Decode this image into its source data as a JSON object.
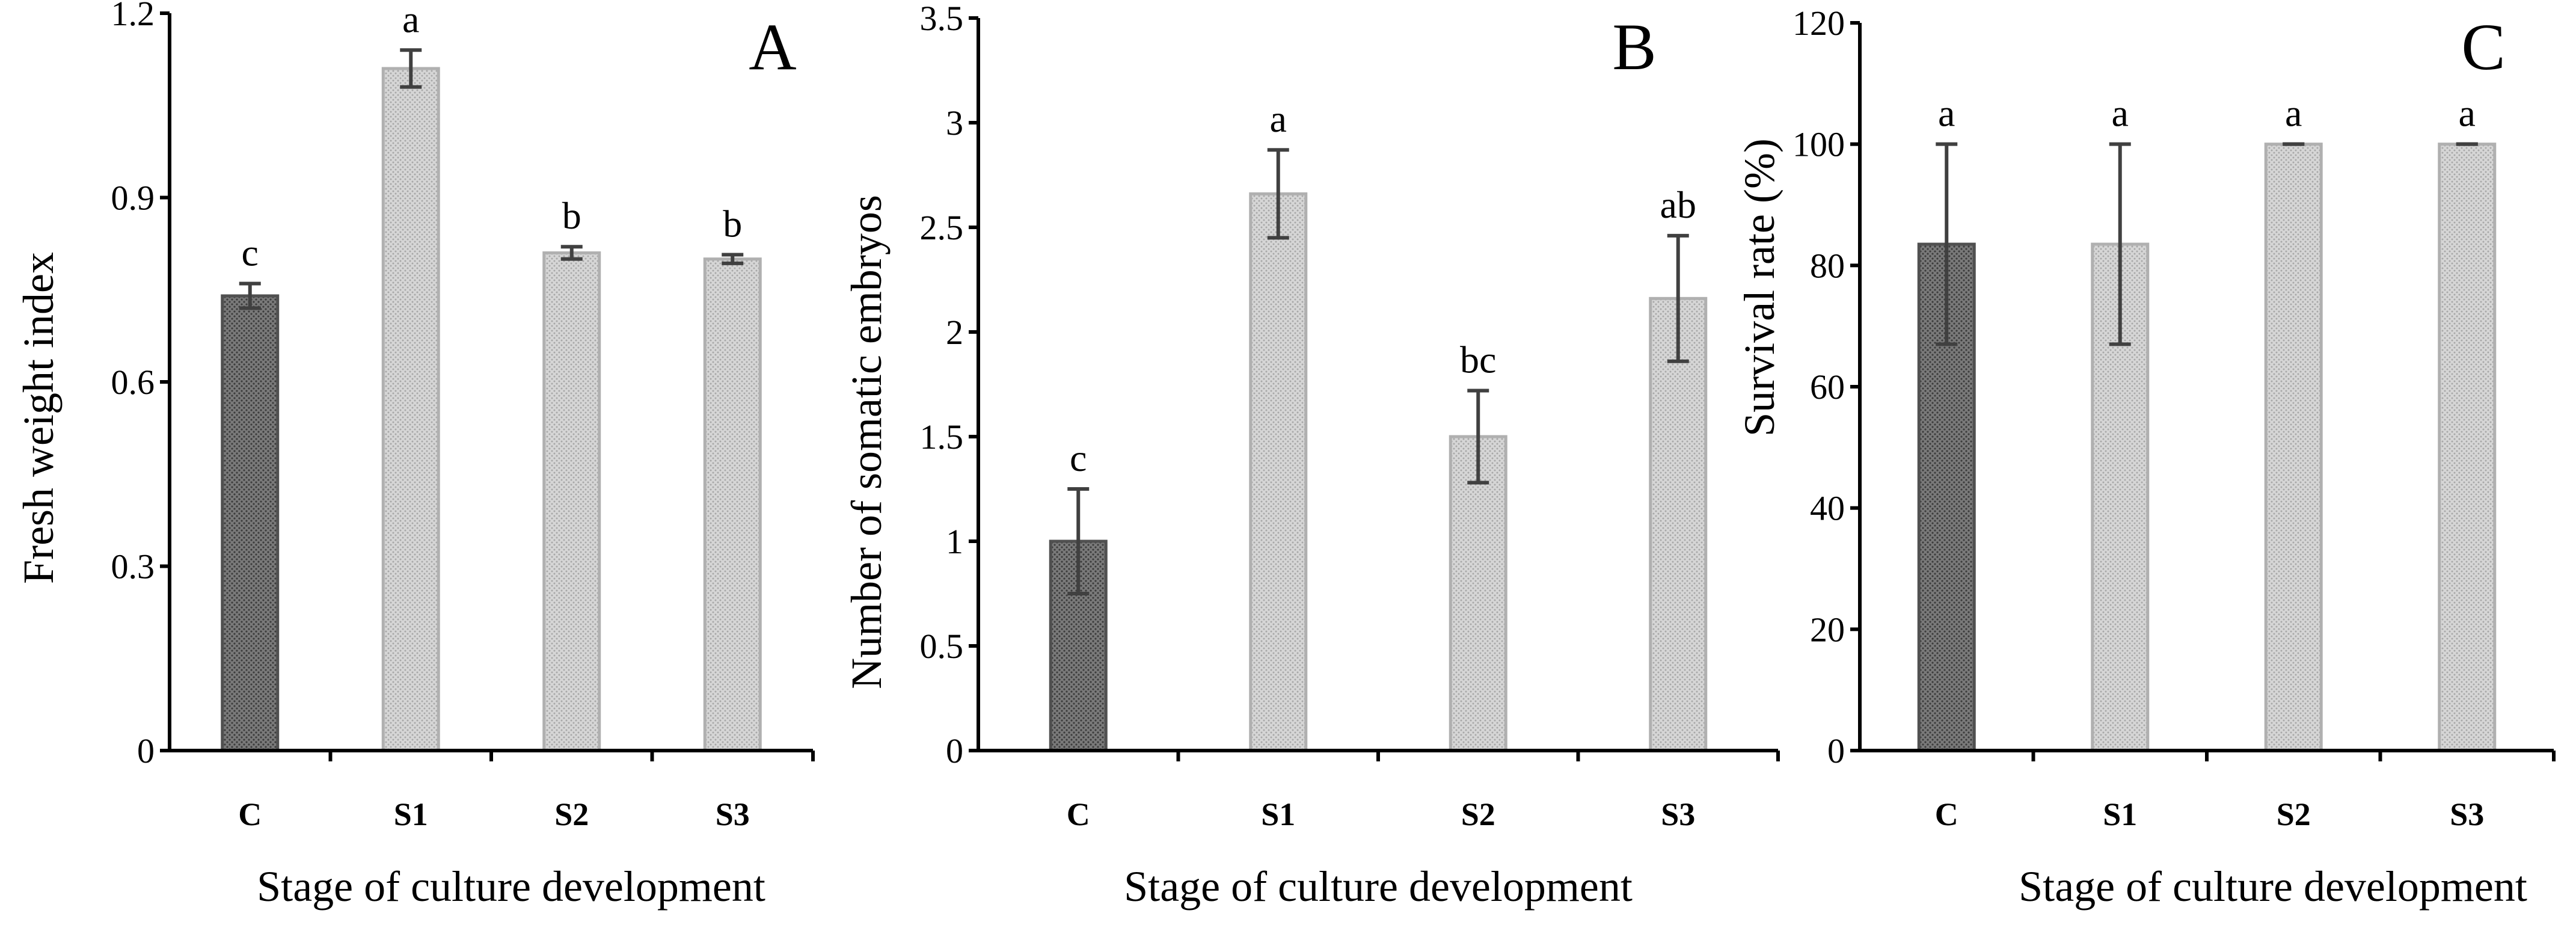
{
  "chart_data": [
    {
      "type": "bar",
      "panel": "A",
      "categories": [
        "C",
        "S1",
        "S2",
        "S3"
      ],
      "values": [
        0.74,
        1.11,
        0.81,
        0.8
      ],
      "errors": [
        0.02,
        0.03,
        0.01,
        0.007
      ],
      "significance": [
        "c",
        "a",
        "b",
        "b"
      ],
      "bar_styles": [
        "dark",
        "light",
        "light",
        "light"
      ],
      "ylabel": "Fresh weight index",
      "xlabel": "Stage of culture development",
      "ylim": [
        0,
        1.2
      ],
      "yticks": [
        "0",
        "0.3",
        "0.6",
        "0.9",
        "1.2"
      ],
      "ytick_values": [
        0,
        0.3,
        0.6,
        0.9,
        1.2
      ]
    },
    {
      "type": "bar",
      "panel": "B",
      "categories": [
        "C",
        "S1",
        "S2",
        "S3"
      ],
      "values": [
        1.0,
        2.66,
        1.5,
        2.16
      ],
      "errors": [
        0.25,
        0.21,
        0.22,
        0.3
      ],
      "significance": [
        "c",
        "a",
        "bc",
        "ab"
      ],
      "bar_styles": [
        "dark",
        "light",
        "light",
        "light"
      ],
      "ylabel": "Number of somatic embryos",
      "xlabel": "Stage of culture development",
      "ylim": [
        0,
        3.5
      ],
      "yticks": [
        "0",
        "0.5",
        "1",
        "1.5",
        "2",
        "2.5",
        "3",
        "3.5"
      ],
      "ytick_values": [
        0,
        0.5,
        1,
        1.5,
        2,
        2.5,
        3,
        3.5
      ]
    },
    {
      "type": "bar",
      "panel": "C",
      "categories": [
        "C",
        "S1",
        "S2",
        "S3"
      ],
      "values": [
        83.5,
        83.5,
        100,
        100
      ],
      "errors": [
        16.5,
        16.5,
        0,
        0
      ],
      "significance": [
        "a",
        "a",
        "a",
        "a"
      ],
      "bar_styles": [
        "dark",
        "light",
        "light",
        "light"
      ],
      "ylabel": "Survival rate (%)",
      "xlabel": "Stage of culture development",
      "ylim": [
        0,
        120
      ],
      "yticks": [
        "0",
        "20",
        "40",
        "60",
        "80",
        "100",
        "120"
      ],
      "ytick_values": [
        0,
        20,
        40,
        60,
        80,
        100,
        120
      ]
    }
  ],
  "colors": {
    "dark_fill": "#6e6e6e",
    "dark_stroke": "#505050",
    "light_fill": "#cfcfcf",
    "light_stroke": "#b0b0b0",
    "error_bar": "#404040"
  }
}
